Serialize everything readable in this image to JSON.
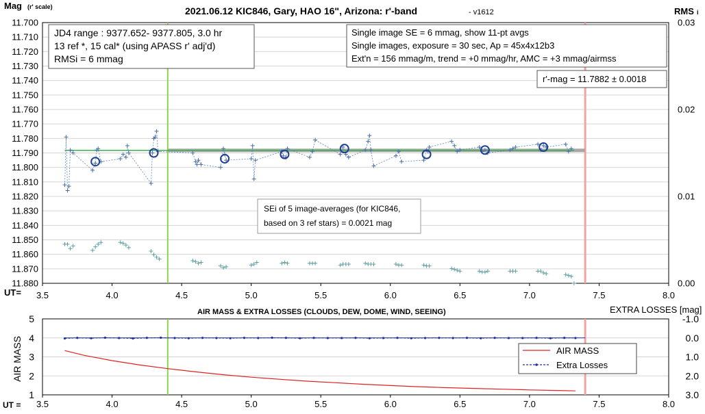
{
  "chart_data": [
    {
      "type": "scatter",
      "title": "2021.06.12 KIC846, Gary, HAO 16\", Arizona: r'-band",
      "version": "- v1612",
      "ylabel": "Mag",
      "ylabel_sub": "(r' scale)",
      "xlabel": "UT=",
      "y2label": "RMS",
      "y2label_sub": "i",
      "xlim": [
        3.5,
        8.0
      ],
      "xticks": [
        "3.5",
        "4.0",
        "4.5",
        "5.0",
        "5.5",
        "6.0",
        "6.5",
        "7.0",
        "7.5",
        "8.0"
      ],
      "ylim": [
        11.88,
        11.7
      ],
      "yticks": [
        "11.700",
        "11.710",
        "11.720",
        "11.730",
        "11.740",
        "11.750",
        "11.760",
        "11.770",
        "11.780",
        "11.790",
        "11.800",
        "11.810",
        "11.820",
        "11.830",
        "11.840",
        "11.850",
        "11.860",
        "11.870",
        "11.880"
      ],
      "y2lim": [
        0.0,
        0.03
      ],
      "y2ticks": [
        "0.03",
        "0.02",
        "0.01",
        "0.00"
      ],
      "grid": true,
      "annotations": {
        "box_left": [
          "JD4 range : 9377.652- 9377.805,  3.0  hr",
          "13 ref *, 15 cal* (using APASS r' adj'd)",
          "RMSi = 6 mmag"
        ],
        "box_right": [
          "Single image SE = 6 mmag, show  11-pt avgs",
          "Single images, exposure = 30 sec, Ap = 45x4x12b3",
          "Ext'n = 156 mmag/m, trend =  +0 mmag/hr, AMC = +3 mmag/airmss"
        ],
        "mag_box": "r'-mag = 11.7882 ± 0.0018",
        "sei_box": [
          "SEi of 5 image-averages (for KIC846,",
          "based on 3 ref stars) = 0.0021 mag"
        ]
      },
      "vlines": {
        "green_ut": 4.4,
        "red_ut": 7.4
      },
      "mean_mag": 11.7882,
      "series": [
        {
          "name": "single images",
          "color": "#4a6fa5",
          "x": [
            3.66,
            3.67,
            3.68,
            3.69,
            3.7,
            3.72,
            3.86,
            3.88,
            3.89,
            3.9,
            3.92,
            4.06,
            4.08,
            4.1,
            4.11,
            4.12,
            4.28,
            4.29,
            4.3,
            4.31,
            4.32,
            4.33,
            4.58,
            4.6,
            4.61,
            4.62,
            4.64,
            4.78,
            4.8,
            4.81,
            4.82,
            5.0,
            5.01,
            5.02,
            5.03,
            5.22,
            5.23,
            5.25,
            5.26,
            5.42,
            5.44,
            5.46,
            5.64,
            5.66,
            5.68,
            5.7,
            5.82,
            5.84,
            5.85,
            5.86,
            5.88,
            6.04,
            6.06,
            6.08,
            6.24,
            6.26,
            6.27,
            6.28,
            6.44,
            6.46,
            6.48,
            6.5,
            6.64,
            6.66,
            6.68,
            6.7,
            6.86,
            6.88,
            6.9,
            7.06,
            7.08,
            7.1,
            7.12,
            7.26,
            7.28,
            7.3
          ],
          "y": [
            11.812,
            11.779,
            11.816,
            11.813,
            11.788,
            11.79,
            11.802,
            11.797,
            11.788,
            11.787,
            11.796,
            11.794,
            11.791,
            11.793,
            11.785,
            11.79,
            11.811,
            11.79,
            11.78,
            11.779,
            11.775,
            11.789,
            11.79,
            11.796,
            11.798,
            11.795,
            11.798,
            11.8,
            11.787,
            11.791,
            11.795,
            11.794,
            11.785,
            11.808,
            11.795,
            11.789,
            11.792,
            11.793,
            11.787,
            11.793,
            11.789,
            11.781,
            11.791,
            11.786,
            11.791,
            11.793,
            11.788,
            11.782,
            11.778,
            11.788,
            11.799,
            11.792,
            11.789,
            11.796,
            11.795,
            11.788,
            11.789,
            11.786,
            11.782,
            11.785,
            11.789,
            11.788,
            11.786,
            11.789,
            11.788,
            11.79,
            11.788,
            11.787,
            11.786,
            11.784,
            11.788,
            11.785,
            11.786,
            11.784,
            11.789,
            11.787
          ]
        },
        {
          "name": "11-pt avgs",
          "color": "#1f3f8f",
          "x": [
            3.88,
            4.3,
            4.81,
            5.24,
            5.67,
            6.26,
            6.68,
            7.1
          ],
          "y": [
            11.796,
            11.79,
            11.794,
            11.791,
            11.787,
            11.791,
            11.788,
            11.786
          ]
        },
        {
          "name": "RMSi",
          "color": "#5f9ea0",
          "x": [
            3.66,
            3.68,
            3.7,
            3.72,
            3.86,
            3.88,
            3.9,
            3.92,
            4.06,
            4.08,
            4.1,
            4.12,
            4.28,
            4.3,
            4.32,
            4.34,
            4.58,
            4.6,
            4.62,
            4.64,
            4.78,
            4.8,
            4.82,
            5.0,
            5.02,
            5.04,
            5.22,
            5.24,
            5.26,
            5.42,
            5.44,
            5.46,
            5.64,
            5.66,
            5.68,
            5.7,
            5.82,
            5.84,
            5.86,
            5.88,
            6.04,
            6.06,
            6.08,
            6.24,
            6.26,
            6.28,
            6.44,
            6.46,
            6.48,
            6.5,
            6.64,
            6.66,
            6.68,
            6.7,
            6.86,
            6.88,
            6.9,
            7.06,
            7.08,
            7.1,
            7.12,
            7.26,
            7.28,
            7.3,
            7.32
          ],
          "y": [
            0.0045,
            0.0045,
            0.004,
            0.0043,
            0.0038,
            0.0042,
            0.0045,
            0.0047,
            0.0047,
            0.0046,
            0.0044,
            0.0041,
            0.0037,
            0.0033,
            0.003,
            0.0028,
            0.0026,
            0.0025,
            0.0023,
            0.0024,
            0.002,
            0.0018,
            0.0019,
            0.0021,
            0.0022,
            0.0024,
            0.0023,
            0.0024,
            0.0023,
            0.0023,
            0.0023,
            0.0023,
            0.0021,
            0.0022,
            0.0022,
            0.0022,
            0.0023,
            0.0022,
            0.0022,
            0.0022,
            0.0022,
            0.0021,
            0.0021,
            0.0021,
            0.002,
            0.002,
            0.0017,
            0.0016,
            0.0015,
            0.0014,
            0.0014,
            0.0013,
            0.0013,
            0.0014,
            0.0014,
            0.0014,
            0.0014,
            0.0014,
            0.0014,
            0.0012,
            0.0011,
            0.001,
            0.0009,
            0.0008,
            0.0
          ]
        }
      ]
    },
    {
      "type": "line",
      "title": "AIR MASS & EXTRA LOSSES (CLOUDS, DEW, DOME, WIND, SEEING)",
      "ylabel": "AIR MASS",
      "y2label": "EXTRA LOSSES [mag]",
      "xlabel": "UT =",
      "xlim": [
        3.5,
        8.0
      ],
      "xticks": [
        "3.5",
        "4.0",
        "4.5",
        "5.0",
        "5.5",
        "6.0",
        "6.5",
        "7.0",
        "7.5",
        "8.0"
      ],
      "ylim": [
        1,
        5
      ],
      "yticks": [
        "5",
        "4",
        "3",
        "2",
        "1"
      ],
      "y2lim": [
        -1.0,
        3.0
      ],
      "y2ticks": [
        "-1.0",
        "0.0",
        "1.0",
        "2.0",
        "3.0"
      ],
      "grid": true,
      "legend": {
        "position": "right",
        "entries": [
          "AIR MASS",
          "Extra Losses"
        ]
      },
      "vlines": {
        "green_ut": 4.4,
        "red_ut": 7.4
      },
      "series": [
        {
          "name": "AIR MASS",
          "color": "#e02020",
          "x": [
            3.66,
            3.8,
            4.0,
            4.2,
            4.4,
            4.6,
            4.8,
            5.0,
            5.2,
            5.4,
            5.6,
            5.8,
            6.0,
            6.2,
            6.4,
            6.6,
            6.8,
            7.0,
            7.2,
            7.33
          ],
          "y": [
            3.33,
            3.08,
            2.8,
            2.57,
            2.38,
            2.21,
            2.06,
            1.93,
            1.82,
            1.72,
            1.64,
            1.56,
            1.49,
            1.43,
            1.38,
            1.34,
            1.3,
            1.26,
            1.23,
            1.21
          ]
        },
        {
          "name": "Extra Losses",
          "color": "#1f2fa0",
          "x": [
            3.66,
            3.75,
            3.85,
            3.95,
            4.05,
            4.15,
            4.25,
            4.35,
            4.45,
            4.55,
            4.65,
            4.75,
            4.85,
            4.95,
            5.05,
            5.15,
            5.25,
            5.35,
            5.45,
            5.55,
            5.65,
            5.75,
            5.85,
            5.95,
            6.05,
            6.15,
            6.25,
            6.35,
            6.45,
            6.55,
            6.65,
            6.75,
            6.85,
            6.95,
            7.05,
            7.15,
            7.25,
            7.33
          ],
          "y": [
            0.03,
            0.0,
            0.02,
            -0.01,
            0.01,
            0.03,
            0.0,
            -0.01,
            0.01,
            0.02,
            0.0,
            0.01,
            0.02,
            0.0,
            0.01,
            -0.01,
            0.0,
            0.02,
            0.0,
            0.01,
            0.01,
            0.0,
            0.02,
            0.01,
            0.0,
            0.02,
            0.01,
            0.0,
            0.01,
            0.0,
            0.02,
            0.0,
            0.01,
            0.01,
            0.0,
            0.02,
            0.0,
            0.01
          ]
        }
      ]
    }
  ]
}
